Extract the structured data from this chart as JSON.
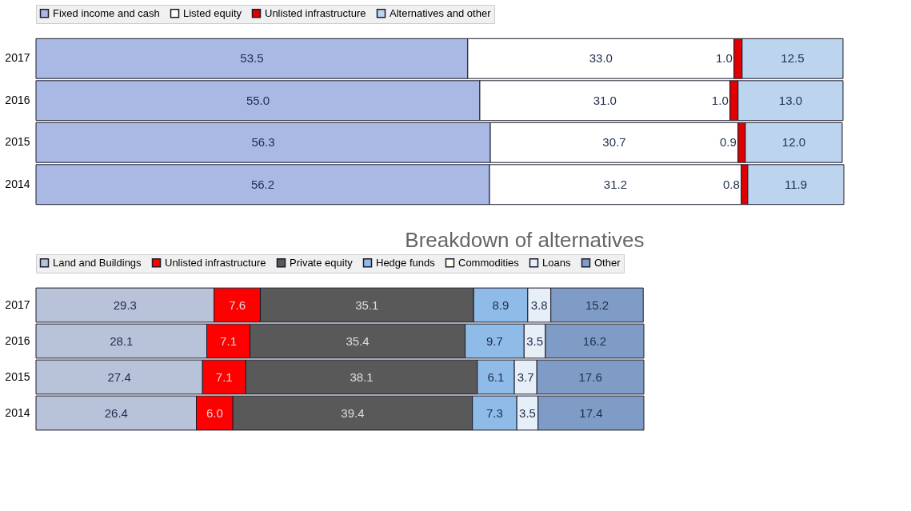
{
  "chart_data": [
    {
      "type": "bar",
      "orientation": "horizontal",
      "stacked": true,
      "data_labels": true,
      "tick_labels": "y",
      "grid": false,
      "legend": "top",
      "categories": [
        "2017",
        "2016",
        "2015",
        "2014"
      ],
      "series": [
        {
          "name": "Fixed income and cash",
          "color": "#a9b9e3",
          "values": [
            53.5,
            55.0,
            56.3,
            56.2
          ],
          "value_labels": [
            "53.5",
            "55.0",
            "56.3",
            "56.2"
          ]
        },
        {
          "name": "Listed equity",
          "color": "#ffffff",
          "values": [
            33.0,
            31.0,
            30.7,
            31.2
          ],
          "value_labels": [
            "33.0",
            "31.0",
            "30.7",
            "31.2"
          ]
        },
        {
          "name": "Unlisted infrastructure",
          "color": "#e00000",
          "values": [
            1.0,
            1.0,
            0.9,
            0.8
          ],
          "value_labels": [
            "1.0",
            "1.0",
            "0.9",
            "0.8"
          ]
        },
        {
          "name": "Alternatives and other",
          "color": "#bcd4ee",
          "values": [
            12.5,
            13.0,
            12.0,
            11.9
          ],
          "value_labels": [
            "12.5",
            "13.0",
            "12.0",
            "11.9"
          ]
        }
      ]
    },
    {
      "type": "bar",
      "orientation": "horizontal",
      "stacked": true,
      "data_labels": true,
      "tick_labels": "y",
      "grid": false,
      "legend": "top",
      "title": "Breakdown of alternatives",
      "categories": [
        "2017",
        "2016",
        "2015",
        "2014"
      ],
      "series": [
        {
          "name": "Land and Buildings",
          "color": "#b8c2d8",
          "values": [
            29.3,
            28.1,
            27.4,
            26.4
          ]
        },
        {
          "name": "Unlisted infrastructure",
          "color": "#ff0000",
          "values": [
            7.6,
            7.1,
            7.1,
            6.0
          ],
          "value_labels": [
            "7.6",
            "7.1",
            "7.1",
            "6.0"
          ]
        },
        {
          "name": "Private equity",
          "color": "#595959",
          "values": [
            35.1,
            35.4,
            38.1,
            39.4
          ]
        },
        {
          "name": "Hedge funds",
          "color": "#8fbbe8",
          "values": [
            8.9,
            9.7,
            6.1,
            7.3
          ]
        },
        {
          "name": "Commodities",
          "color": "#fffff2",
          "values": [
            null,
            null,
            null,
            null
          ]
        },
        {
          "name": "Loans",
          "color": "#e6eef8",
          "values": [
            3.8,
            3.5,
            3.7,
            3.5
          ]
        },
        {
          "name": "Other",
          "color": "#7f9cc6",
          "values": [
            15.2,
            16.2,
            17.6,
            17.4
          ]
        }
      ]
    }
  ]
}
